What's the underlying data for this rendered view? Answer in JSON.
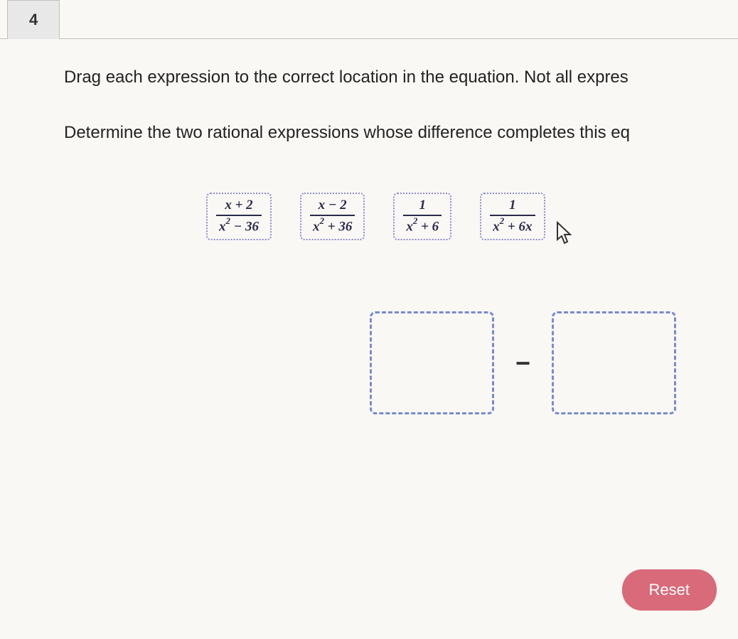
{
  "question": {
    "number": "4",
    "instruction": "Drag each expression to the correct location in the equation. Not all expres",
    "prompt": "Determine the two rational expressions whose difference completes this eq"
  },
  "tiles": [
    {
      "numerator": "x + 2",
      "denominator_html": "x<span class='sup'>2</span> − 36"
    },
    {
      "numerator": "x − 2",
      "denominator_html": "x<span class='sup'>2</span> + 36"
    },
    {
      "numerator": "1",
      "denominator_html": "x<span class='sup'>2</span> + 6"
    },
    {
      "numerator": "1",
      "denominator_html": "x<span class='sup'>2</span> + 6x"
    }
  ],
  "equation": {
    "operator": "−"
  },
  "buttons": {
    "reset_label": "Reset"
  },
  "colors": {
    "tile_border": "#8a8ad4",
    "dropzone_border": "#7a8ad0",
    "reset_bg": "#d96a7a",
    "text": "#222",
    "math_text": "#2a2a4a",
    "page_bg": "#faf8f5"
  }
}
